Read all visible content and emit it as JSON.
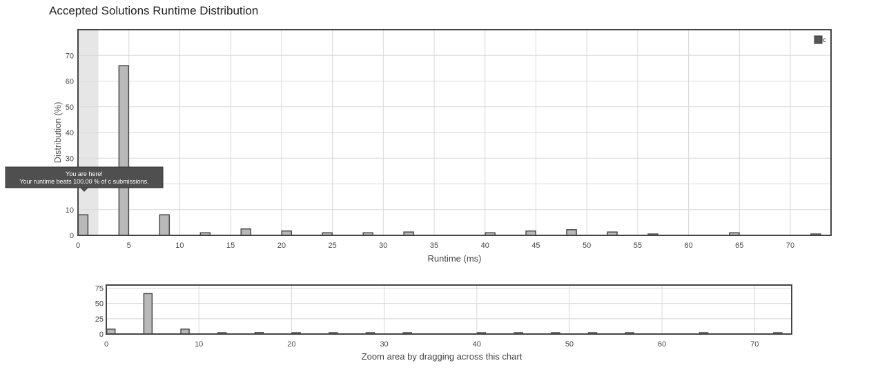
{
  "page": {
    "title": "Accepted Solutions Runtime Distribution"
  },
  "colors": {
    "bar_fill": "#b9b9b9",
    "bar_stroke": "#4a4a4a",
    "frame": "#444444",
    "grid": "#d8d8d8",
    "tooltip_bg": "#4f4f4f",
    "tooltip_text": "#ffffff",
    "highlight_band": "#e6e6e6"
  },
  "chart_data": [
    {
      "type": "bar",
      "xlabel": "Runtime (ms)",
      "ylabel": "Distribution (%)",
      "xlim": [
        0,
        74
      ],
      "ylim": [
        0,
        80
      ],
      "x_ticks": [
        0,
        5,
        10,
        15,
        20,
        25,
        30,
        35,
        40,
        45,
        50,
        55,
        60,
        65,
        70
      ],
      "y_ticks": [
        0,
        10,
        20,
        30,
        40,
        50,
        60,
        70
      ],
      "grid": true,
      "legend": {
        "position": "top-right",
        "label": "c"
      },
      "highlight_band_x": [
        0,
        2
      ],
      "tooltip": {
        "line1": "You are here!",
        "line2": "Your runtime beats 100.00 % of c submissions."
      },
      "series": [
        {
          "name": "c",
          "x": [
            0.5,
            4.5,
            8.5,
            12.5,
            16.5,
            20.5,
            24.5,
            28.5,
            32.5,
            40.5,
            44.5,
            48.5,
            52.5,
            56.5,
            64.5,
            72.5
          ],
          "values": [
            8,
            66,
            8,
            1,
            2.5,
            1.7,
            1,
            1,
            1.3,
            1,
            1.7,
            2.2,
            1.3,
            0.5,
            1,
            0.5
          ]
        }
      ]
    },
    {
      "type": "bar",
      "xlabel": "Zoom area by dragging across this chart",
      "xlim": [
        0,
        74
      ],
      "ylim": [
        0,
        80
      ],
      "x_ticks": [
        0,
        10,
        20,
        30,
        40,
        50,
        60,
        70
      ],
      "y_ticks": [
        0,
        25,
        50,
        75
      ],
      "grid": true,
      "series": [
        {
          "name": "c",
          "x": [
            0.5,
            4.5,
            8.5,
            12.5,
            16.5,
            20.5,
            24.5,
            28.5,
            32.5,
            40.5,
            44.5,
            48.5,
            52.5,
            56.5,
            64.5,
            72.5
          ],
          "values": [
            8,
            66,
            8,
            1,
            2.5,
            1.7,
            1,
            1,
            1.3,
            1,
            1.7,
            2.2,
            1.3,
            0.5,
            1,
            0.5
          ]
        }
      ]
    }
  ]
}
